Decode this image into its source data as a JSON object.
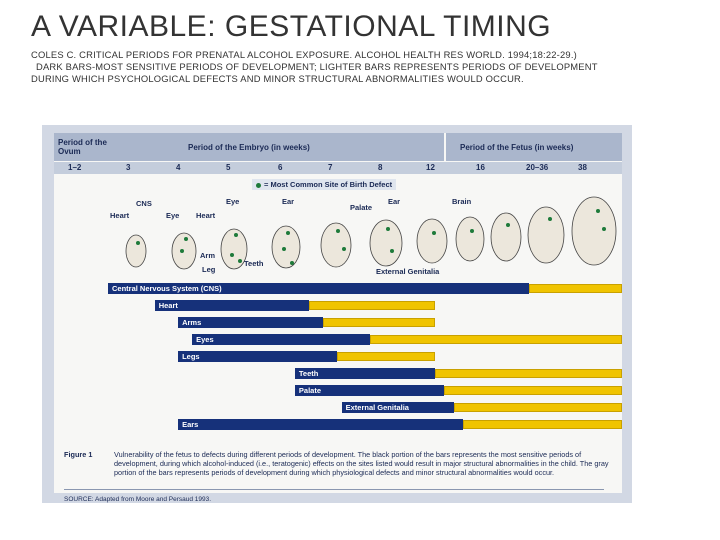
{
  "slide": {
    "title": "A VARIABLE: GESTATIONAL TIMING",
    "citation": "COLES C. CRITICAL PERIODS FOR PRENATAL ALCOHOL EXPOSURE. ALCOHOL HEALTH RES WORLD. 1994;18:22-29.)",
    "note_line1": "DARK BARS-MOST SENSITIVE PERIODS OF DEVELOPMENT; LIGHTER BARS REPRESENTS PERIODS OF DEVELOPMENT",
    "note_line2": "DURING WHICH PSYCHOLOGICAL DEFECTS AND MINOR STRUCTURAL ABNORMALITIES WOULD OCCUR."
  },
  "figure": {
    "header_ovum": "Period of the Ovum",
    "header_embryo": "Period of the Embryo (in weeks)",
    "header_fetus": "Period of the Fetus (in weeks)",
    "weeks": [
      "1–2",
      "3",
      "4",
      "5",
      "6",
      "7",
      "8",
      "12",
      "16",
      "20–36",
      "38"
    ],
    "legend": "= Most Common Site of Birth Defect",
    "organ_labels": {
      "cns": "CNS",
      "heart1": "Heart",
      "eye1": "Eye",
      "heart2": "Heart",
      "arm": "Arm",
      "leg": "Leg",
      "eye2": "Eye",
      "teeth": "Teeth",
      "ear1": "Ear",
      "palate": "Palate",
      "ear2": "Ear",
      "brain": "Brain",
      "genitalia": "External Genitalia"
    },
    "bars": [
      {
        "label": "Central Nervous System (CNS)",
        "dark_start": 0,
        "dark_end": 9,
        "light_end": 11
      },
      {
        "label": "Heart",
        "dark_start": 1,
        "dark_end": 4.3,
        "light_end": 7
      },
      {
        "label": "Arms",
        "dark_start": 1.5,
        "dark_end": 4.6,
        "light_end": 7
      },
      {
        "label": "Eyes",
        "dark_start": 1.8,
        "dark_end": 5.6,
        "light_end": 11
      },
      {
        "label": "Legs",
        "dark_start": 1.5,
        "dark_end": 4.9,
        "light_end": 7
      },
      {
        "label": "Teeth",
        "dark_start": 4,
        "dark_end": 7,
        "light_end": 11
      },
      {
        "label": "Palate",
        "dark_start": 4,
        "dark_end": 7.2,
        "light_end": 11
      },
      {
        "label": "External Genitalia",
        "dark_start": 5,
        "dark_end": 7.4,
        "light_end": 11
      },
      {
        "label": "Ears",
        "dark_start": 1.5,
        "dark_end": 7.6,
        "light_end": 11
      }
    ],
    "caption_label": "Figure 1",
    "caption_text": "Vulnerability of the fetus to defects during different periods of development. The black portion of the bars represents the most sensitive periods of development, during which alcohol-induced (i.e., teratogenic) effects on the sites listed would result in major structural abnormalities in the child. The gray portion of the bars represents periods of development during which physiological defects and minor structural abnormalities would occur.",
    "source": "SOURCE: Adapted from Moore and Persaud 1993.",
    "colors": {
      "dark": "#16317a",
      "light": "#f0c400",
      "header": "#aab6cc",
      "defect_dot": "#1e7a3a"
    }
  }
}
